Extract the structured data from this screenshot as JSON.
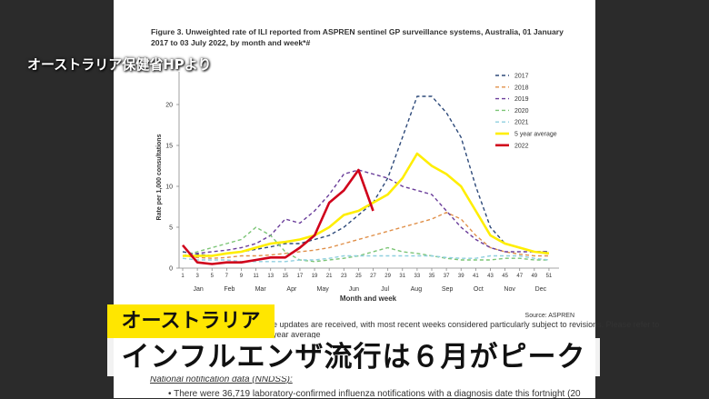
{
  "chart_data": {
    "type": "line",
    "title": "Figure 3. Unweighted rate of ILI reported from ASPREN sentinel GP surveillance systems, Australia, 01 January",
    "title_line2": "2017 to 03 July 2022, by month and week*#",
    "x_label": "Month and week",
    "y_label": "Rate per 1,000 consultations",
    "x": [
      1,
      3,
      5,
      7,
      9,
      11,
      13,
      15,
      17,
      19,
      21,
      23,
      25,
      27,
      29,
      31,
      33,
      35,
      37,
      39,
      41,
      43,
      45,
      47,
      49,
      51
    ],
    "xlim": [
      1,
      52
    ],
    "xticks": [
      1,
      3,
      5,
      7,
      9,
      11,
      13,
      15,
      17,
      19,
      21,
      23,
      25,
      27,
      29,
      31,
      33,
      35,
      37,
      39,
      41,
      43,
      45,
      47,
      49,
      51
    ],
    "months": [
      "Jan",
      "Feb",
      "Mar",
      "Apr",
      "May",
      "Jun",
      "Jul",
      "Aug",
      "Sep",
      "Oct",
      "Nov",
      "Dec"
    ],
    "ylim": [
      0,
      24
    ],
    "yticks": [
      0,
      5,
      10,
      15,
      20
    ],
    "grid": false,
    "legend": "upper right",
    "series": [
      {
        "name": "2017",
        "color": "#2e4a7a",
        "style": "dashed",
        "values": [
          2,
          1.7,
          1.5,
          1.8,
          2,
          2.3,
          2.6,
          3,
          3,
          3.5,
          4,
          5,
          6.5,
          8,
          11,
          16,
          21,
          21,
          19,
          16,
          10,
          5,
          3,
          2.5,
          2,
          2
        ]
      },
      {
        "name": "2018",
        "color": "#e0904a",
        "style": "dashed",
        "values": [
          1.5,
          1.3,
          1.2,
          1.3,
          1.5,
          1.5,
          1.6,
          1.8,
          2,
          2.2,
          2.5,
          3,
          3.5,
          4,
          4.5,
          5,
          5.5,
          6,
          6.8,
          6,
          4,
          2.5,
          2,
          1.7,
          1.5,
          1.5
        ]
      },
      {
        "name": "2019",
        "color": "#6a3d9a",
        "style": "dashed",
        "values": [
          1.5,
          1.8,
          2,
          2.2,
          2.5,
          3,
          4,
          6,
          5.5,
          7,
          9,
          11.5,
          12,
          11.5,
          11,
          10,
          9.5,
          9,
          7,
          5,
          3.5,
          2.5,
          2,
          2,
          2,
          2
        ]
      },
      {
        "name": "2020",
        "color": "#7cc576",
        "style": "dashed",
        "values": [
          1.5,
          2,
          2.5,
          3,
          3.5,
          5,
          4,
          2,
          1,
          0.8,
          1,
          1.2,
          1.5,
          2,
          2.5,
          2,
          1.8,
          1.5,
          1.2,
          1,
          1,
          1,
          1.2,
          1.2,
          1,
          1
        ]
      },
      {
        "name": "2021",
        "color": "#8fcfdf",
        "style": "dashed",
        "values": [
          1.2,
          1,
          1,
          1,
          0.8,
          0.8,
          0.8,
          0.8,
          1,
          1,
          1.2,
          1.5,
          1.5,
          1.5,
          1.5,
          1.5,
          1.5,
          1.5,
          1.3,
          1.2,
          1.2,
          1.5,
          1.5,
          1.5,
          1.2,
          1
        ]
      },
      {
        "name": "5 year average",
        "color": "#ffee00",
        "style": "solid",
        "values": [
          1.5,
          1.5,
          1.5,
          1.8,
          2,
          2.5,
          3,
          3.2,
          3.5,
          4,
          5,
          6.5,
          7,
          8,
          9,
          11,
          14,
          12.5,
          11.5,
          10,
          7,
          4,
          3,
          2.5,
          2,
          1.8
        ]
      },
      {
        "name": "2022",
        "color": "#d0021b",
        "style": "solid",
        "values": [
          2.8,
          0.7,
          0.5,
          0.7,
          0.7,
          1,
          1.3,
          1.3,
          2.5,
          4,
          8,
          9.5,
          12,
          7,
          null,
          null,
          null,
          null,
          null,
          null,
          null,
          null,
          null,
          null,
          null,
          null
        ]
      }
    ],
    "source": "Source: ASPREN"
  },
  "overlay": {
    "caption": "オーストラリア保健省HPより",
    "topic": "オーストラリア",
    "headline": "インフルエンザ流行は６月がピーク"
  },
  "document": {
    "note_line1": "e updates are received, with most recent weeks considered particularly subject to revisions. Please refer to",
    "note_line2": "year average",
    "section_heading": "National notification data (NNDSS):",
    "bullet": "•    There were 36,719 laboratory-confirmed influenza notifications with a diagnosis date this fortnight (20"
  }
}
